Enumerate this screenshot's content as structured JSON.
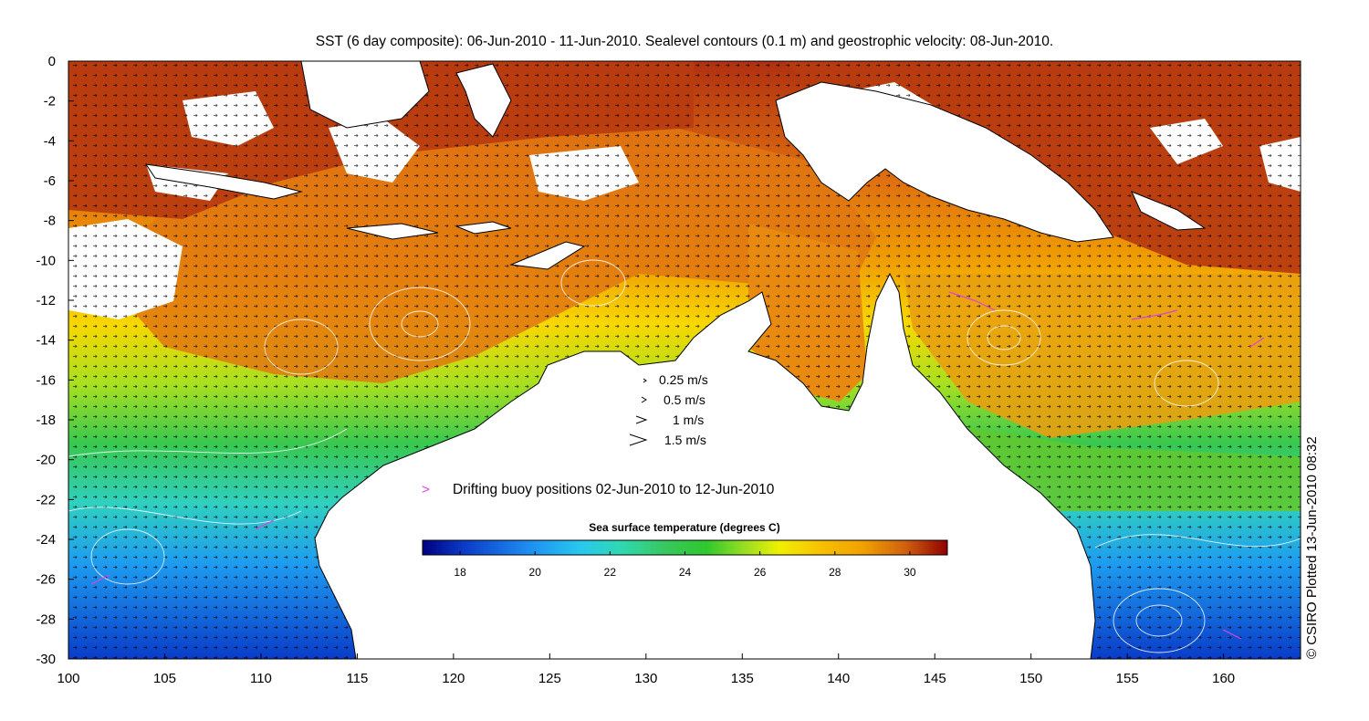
{
  "title": "SST (6 day composite): 06-Jun-2010 - 11-Jun-2010. Sealevel contours (0.1 m) and geostrophic velocity: 08-Jun-2010.",
  "credit": "© CSIRO Plotted 13-Jun-2010 08:32",
  "axes": {
    "x_ticks": [
      "100",
      "105",
      "110",
      "115",
      "120",
      "125",
      "130",
      "135",
      "140",
      "145",
      "150",
      "155",
      "160"
    ],
    "y_ticks": [
      "0",
      "-2",
      "-4",
      "-6",
      "-8",
      "-10",
      "-12",
      "-14",
      "-16",
      "-18",
      "-20",
      "-22",
      "-24",
      "-26",
      "-28",
      "-30"
    ],
    "lon_range": [
      100,
      164
    ],
    "lat_range": [
      -30,
      0
    ]
  },
  "velocity_legend": [
    {
      "label": "0.25 m/s",
      "speed": 0.25
    },
    {
      "label": "0.5 m/s",
      "speed": 0.5
    },
    {
      "label": "1 m/s",
      "speed": 1
    },
    {
      "label": "1.5 m/s",
      "speed": 1.5
    }
  ],
  "buoy_legend": {
    "symbol": ">",
    "label": "Drifting buoy positions 02-Jun-2010 to 12-Jun-2010",
    "color": "#e040e0"
  },
  "colorbar": {
    "title": "Sea surface temperature (degrees C)",
    "ticks": [
      "18",
      "20",
      "22",
      "24",
      "26",
      "28",
      "30"
    ],
    "range": [
      17,
      31
    ],
    "colors": [
      "#000080",
      "#0a3cc8",
      "#1e8cf0",
      "#28c8f0",
      "#30d8b0",
      "#38c860",
      "#2ec82e",
      "#a0e020",
      "#f0f000",
      "#f8c000",
      "#f0a000",
      "#e07010",
      "#c04010",
      "#900000"
    ]
  },
  "colors": {
    "land": "#ffffff",
    "coast": "#000000",
    "contour": "#ffffff",
    "arrow": "#000000"
  }
}
